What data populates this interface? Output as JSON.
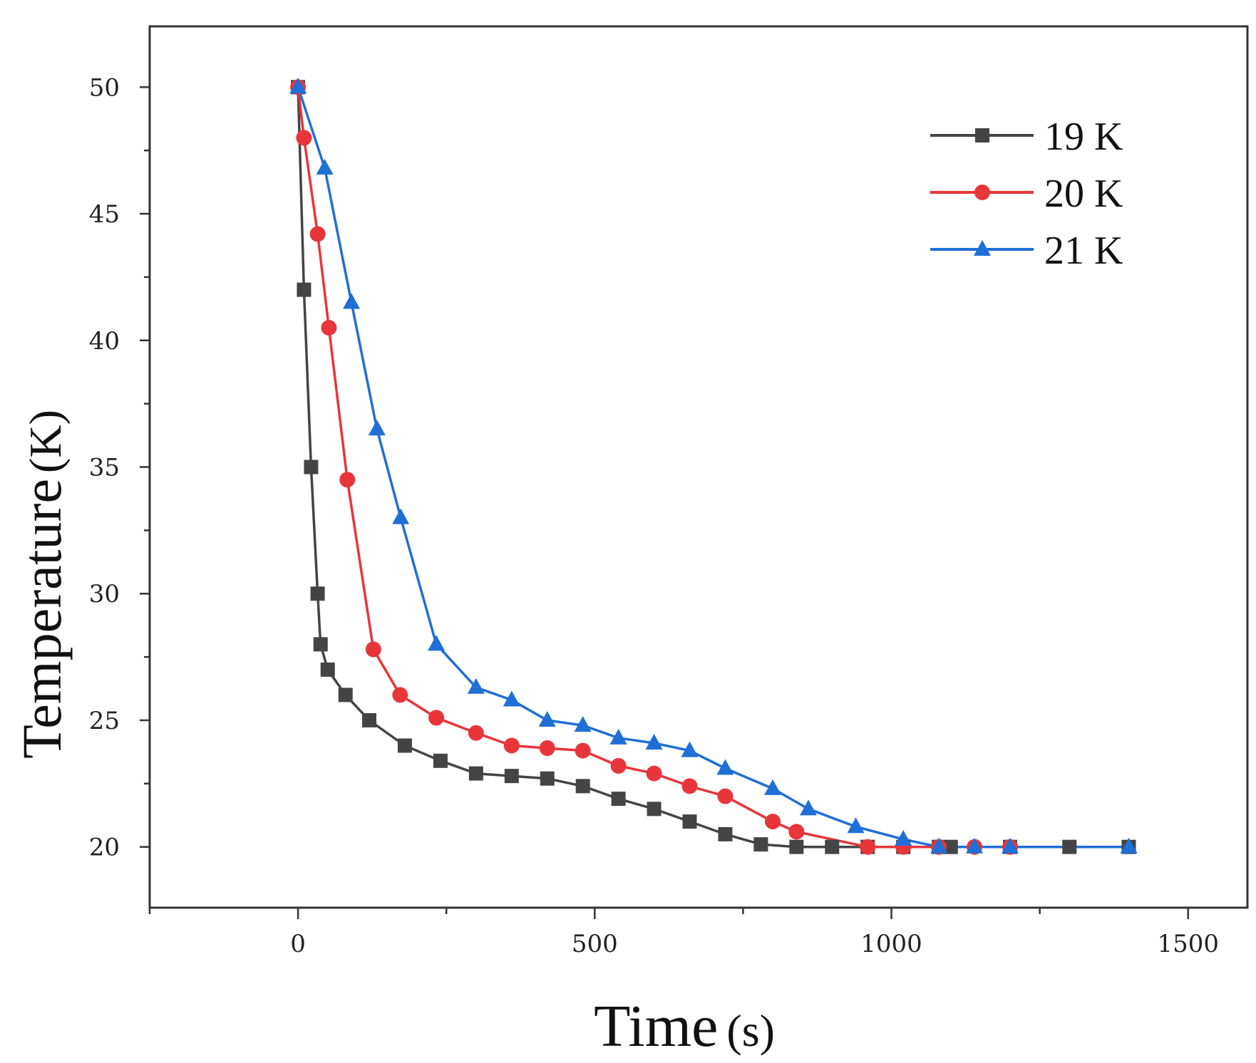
{
  "chart_data": {
    "type": "line",
    "xlabel_main": "Time",
    "xlabel_unit": "(s)",
    "ylabel_main": "Temperature",
    "ylabel_unit": "(K)",
    "xlim": [
      -250,
      1600
    ],
    "ylim": [
      17.6,
      52.4
    ],
    "x_ticks": [
      0,
      500,
      1000,
      1500
    ],
    "y_ticks": [
      20,
      25,
      30,
      35,
      40,
      45,
      50
    ],
    "grid": false,
    "legend_position": "top-right",
    "series": [
      {
        "name": "19 K",
        "color": "#444444",
        "marker": "square",
        "x": [
          0,
          10,
          22,
          33,
          38,
          50,
          80,
          120,
          180,
          240,
          300,
          360,
          420,
          480,
          540,
          600,
          660,
          720,
          780,
          840,
          900,
          960,
          1020,
          1080,
          1100,
          1200,
          1300,
          1400
        ],
        "y": [
          50,
          42,
          35,
          30,
          28,
          27,
          26,
          25,
          24,
          23.4,
          22.9,
          22.8,
          22.7,
          22.4,
          21.9,
          21.5,
          21,
          20.5,
          20.1,
          20,
          20,
          20,
          20,
          20,
          20,
          20,
          20,
          20
        ]
      },
      {
        "name": "20 K",
        "color": "#e8353a",
        "marker": "circle",
        "x": [
          0,
          10,
          33,
          52,
          83,
          127,
          172,
          233,
          300,
          360,
          420,
          480,
          540,
          600,
          660,
          720,
          800,
          840,
          960,
          1020,
          1080,
          1140,
          1200
        ],
        "y": [
          50,
          48,
          44.2,
          40.5,
          34.5,
          27.8,
          26,
          25.1,
          24.5,
          24,
          23.9,
          23.8,
          23.2,
          22.9,
          22.4,
          22,
          21,
          20.6,
          20,
          20,
          20,
          20,
          20
        ]
      },
      {
        "name": "21 K",
        "color": "#1f6fd6",
        "marker": "triangle",
        "x": [
          0,
          45,
          90,
          133,
          173,
          233,
          300,
          360,
          420,
          480,
          540,
          600,
          660,
          720,
          800,
          860,
          940,
          1020,
          1080,
          1140,
          1200,
          1400
        ],
        "y": [
          50,
          46.8,
          41.5,
          36.5,
          33,
          28,
          26.3,
          25.8,
          25,
          24.8,
          24.3,
          24.1,
          23.8,
          23.1,
          22.3,
          21.5,
          20.8,
          20.3,
          20,
          20,
          20,
          20
        ]
      }
    ]
  }
}
